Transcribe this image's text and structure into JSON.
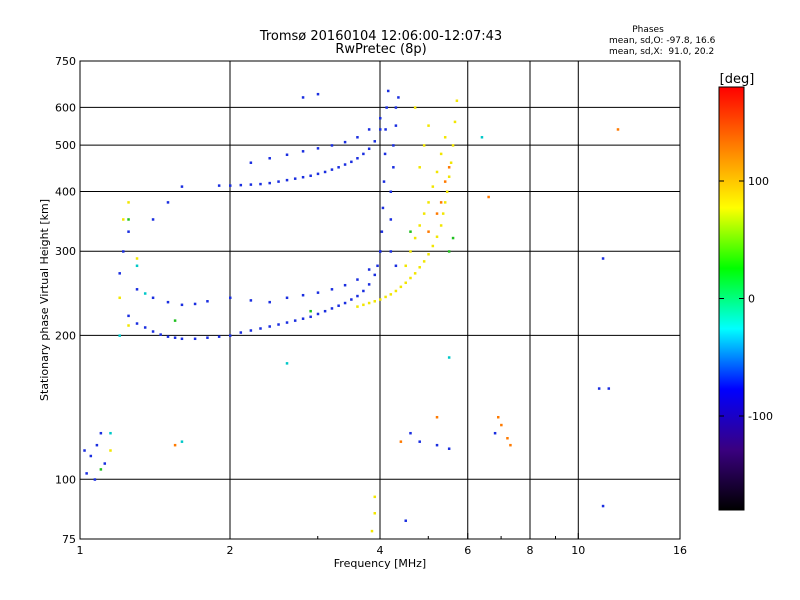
{
  "chart_data": {
    "type": "scatter",
    "title": "Tromsø 20160104 12:06:00-12:07:43",
    "subtitle": "RwPretec (8p)",
    "xlabel": "Frequency [MHz]",
    "ylabel": "Stationary phase Virtual Height [km]",
    "x_scale": "log",
    "y_scale": "log",
    "xlim": [
      1,
      16
    ],
    "ylim": [
      75,
      750
    ],
    "x_ticks": [
      1,
      2,
      4,
      6,
      8,
      10,
      16
    ],
    "x_tick_labels": [
      "1",
      "2",
      "4",
      "6",
      "8",
      "10",
      "16"
    ],
    "x_minor_ticks": [
      3,
      5,
      7,
      9
    ],
    "y_ticks": [
      75,
      100,
      200,
      300,
      400,
      500,
      600,
      750
    ],
    "y_tick_labels": [
      "75",
      "100",
      "200",
      "300",
      "400",
      "500",
      "600",
      "750"
    ],
    "grid": true,
    "stats": {
      "heading": "Phases",
      "line_o": "mean, sd,O: -97.8, 16.6",
      "line_x": "mean, sd,X:  91.0, 20.2"
    },
    "colorbar": {
      "label": "[deg]",
      "range": [
        -180,
        180
      ],
      "ticks": [
        100,
        0,
        -100
      ],
      "tick_labels": [
        "100",
        "0",
        "-100"
      ],
      "colors": [
        "#ff0000",
        "#ff8000",
        "#ffff00",
        "#00ff00",
        "#00ffff",
        "#0000ff",
        "#3a0080",
        "#000000"
      ]
    },
    "series": [
      {
        "name": "O",
        "color": "#1a2ee0",
        "phase": -97.8,
        "points": [
          [
            1.25,
            220
          ],
          [
            1.3,
            212
          ],
          [
            1.35,
            208
          ],
          [
            1.4,
            204
          ],
          [
            1.45,
            201
          ],
          [
            1.5,
            199
          ],
          [
            1.55,
            198
          ],
          [
            1.6,
            197
          ],
          [
            1.7,
            197
          ],
          [
            1.8,
            198
          ],
          [
            1.9,
            199
          ],
          [
            2.0,
            200
          ],
          [
            2.1,
            203
          ],
          [
            2.2,
            205
          ],
          [
            2.3,
            207
          ],
          [
            2.4,
            209
          ],
          [
            2.5,
            211
          ],
          [
            2.6,
            213
          ],
          [
            2.7,
            215
          ],
          [
            2.8,
            217
          ],
          [
            2.9,
            219
          ],
          [
            3.0,
            222
          ],
          [
            3.1,
            225
          ],
          [
            3.2,
            228
          ],
          [
            3.3,
            231
          ],
          [
            3.4,
            234
          ],
          [
            3.5,
            238
          ],
          [
            3.6,
            242
          ],
          [
            3.7,
            248
          ],
          [
            3.8,
            256
          ],
          [
            3.9,
            268
          ],
          [
            3.95,
            280
          ],
          [
            4.0,
            300
          ],
          [
            4.03,
            330
          ],
          [
            4.05,
            370
          ],
          [
            4.07,
            420
          ],
          [
            4.09,
            480
          ],
          [
            4.1,
            540
          ],
          [
            4.12,
            600
          ],
          [
            4.15,
            650
          ],
          [
            1.3,
            250
          ],
          [
            1.4,
            240
          ],
          [
            1.5,
            235
          ],
          [
            1.6,
            232
          ],
          [
            1.7,
            233
          ],
          [
            1.8,
            236
          ],
          [
            2.0,
            240
          ],
          [
            2.2,
            237
          ],
          [
            2.4,
            235
          ],
          [
            2.6,
            240
          ],
          [
            2.8,
            243
          ],
          [
            3.0,
            246
          ],
          [
            3.2,
            250
          ],
          [
            3.4,
            255
          ],
          [
            3.6,
            262
          ],
          [
            3.8,
            275
          ],
          [
            4.0,
            300
          ],
          [
            1.9,
            412
          ],
          [
            2.0,
            412
          ],
          [
            2.1,
            413
          ],
          [
            2.2,
            414
          ],
          [
            2.3,
            415
          ],
          [
            2.4,
            417
          ],
          [
            2.5,
            420
          ],
          [
            2.6,
            423
          ],
          [
            2.7,
            426
          ],
          [
            2.8,
            429
          ],
          [
            2.9,
            432
          ],
          [
            3.0,
            436
          ],
          [
            3.1,
            440
          ],
          [
            3.2,
            445
          ],
          [
            3.3,
            450
          ],
          [
            3.4,
            456
          ],
          [
            3.5,
            462
          ],
          [
            3.6,
            470
          ],
          [
            3.7,
            480
          ],
          [
            3.8,
            492
          ],
          [
            3.9,
            510
          ],
          [
            4.0,
            540
          ],
          [
            2.2,
            460
          ],
          [
            2.4,
            470
          ],
          [
            2.6,
            478
          ],
          [
            2.8,
            486
          ],
          [
            3.0,
            493
          ],
          [
            3.2,
            500
          ],
          [
            3.4,
            508
          ],
          [
            3.6,
            520
          ],
          [
            3.8,
            540
          ],
          [
            4.0,
            570
          ],
          [
            4.2,
            350
          ],
          [
            4.2,
            400
          ],
          [
            4.25,
            450
          ],
          [
            4.25,
            500
          ],
          [
            4.3,
            550
          ],
          [
            4.3,
            600
          ],
          [
            4.35,
            630
          ],
          [
            4.2,
            300
          ],
          [
            4.3,
            280
          ],
          [
            1.02,
            115
          ],
          [
            1.05,
            112
          ],
          [
            1.08,
            118
          ],
          [
            1.1,
            125
          ],
          [
            1.03,
            103
          ],
          [
            1.07,
            100
          ],
          [
            1.12,
            108
          ],
          [
            1.2,
            270
          ],
          [
            1.22,
            300
          ],
          [
            1.25,
            330
          ],
          [
            1.4,
            350
          ],
          [
            1.5,
            380
          ],
          [
            1.6,
            410
          ],
          [
            3.0,
            640
          ],
          [
            2.8,
            630
          ],
          [
            4.6,
            125
          ],
          [
            4.8,
            120
          ],
          [
            5.2,
            118
          ],
          [
            5.5,
            116
          ],
          [
            6.8,
            125
          ],
          [
            4.5,
            82
          ],
          [
            11.2,
            88
          ],
          [
            11.0,
            155
          ],
          [
            11.5,
            155
          ],
          [
            11.2,
            290
          ]
        ]
      },
      {
        "name": "X",
        "color": "#f2e600",
        "phase": 91.0,
        "points": [
          [
            3.6,
            230
          ],
          [
            3.7,
            232
          ],
          [
            3.8,
            234
          ],
          [
            3.9,
            236
          ],
          [
            4.0,
            238
          ],
          [
            4.1,
            241
          ],
          [
            4.2,
            244
          ],
          [
            4.3,
            248
          ],
          [
            4.4,
            253
          ],
          [
            4.5,
            258
          ],
          [
            4.6,
            264
          ],
          [
            4.7,
            270
          ],
          [
            4.8,
            278
          ],
          [
            4.9,
            286
          ],
          [
            5.0,
            296
          ],
          [
            5.1,
            308
          ],
          [
            5.2,
            322
          ],
          [
            5.3,
            340
          ],
          [
            5.35,
            360
          ],
          [
            5.4,
            380
          ],
          [
            5.45,
            400
          ],
          [
            5.5,
            430
          ],
          [
            5.55,
            460
          ],
          [
            5.6,
            500
          ],
          [
            5.65,
            560
          ],
          [
            5.7,
            620
          ],
          [
            4.5,
            280
          ],
          [
            4.6,
            300
          ],
          [
            4.7,
            320
          ],
          [
            4.8,
            340
          ],
          [
            4.9,
            360
          ],
          [
            5.0,
            380
          ],
          [
            5.1,
            410
          ],
          [
            5.2,
            440
          ],
          [
            5.3,
            480
          ],
          [
            5.4,
            520
          ],
          [
            4.8,
            450
          ],
          [
            4.9,
            500
          ],
          [
            5.0,
            550
          ],
          [
            4.7,
            600
          ],
          [
            1.25,
            380
          ],
          [
            1.22,
            350
          ],
          [
            1.3,
            290
          ],
          [
            1.2,
            240
          ],
          [
            1.25,
            210
          ],
          [
            3.9,
            85
          ],
          [
            3.9,
            92
          ],
          [
            3.85,
            78
          ],
          [
            1.15,
            115
          ]
        ]
      },
      {
        "name": "",
        "color": "#ff7a00",
        "phase": 160,
        "points": [
          [
            5.3,
            380
          ],
          [
            5.4,
            420
          ],
          [
            5.2,
            360
          ],
          [
            5.5,
            450
          ],
          [
            5.0,
            330
          ],
          [
            7.3,
            118
          ],
          [
            7.2,
            122
          ],
          [
            7.0,
            130
          ],
          [
            6.9,
            135
          ],
          [
            5.2,
            135
          ],
          [
            4.4,
            120
          ],
          [
            6.6,
            390
          ],
          [
            12.0,
            540
          ],
          [
            1.55,
            118
          ]
        ]
      },
      {
        "name": "",
        "color": "#00c8c8",
        "phase": -10,
        "points": [
          [
            1.3,
            280
          ],
          [
            1.15,
            125
          ],
          [
            1.2,
            200
          ],
          [
            1.35,
            245
          ],
          [
            6.4,
            520
          ],
          [
            5.5,
            180
          ],
          [
            1.6,
            120
          ],
          [
            2.6,
            175
          ]
        ]
      },
      {
        "name": "",
        "color": "#20c020",
        "phase": 20,
        "points": [
          [
            1.25,
            350
          ],
          [
            5.6,
            320
          ],
          [
            5.5,
            300
          ],
          [
            1.1,
            105
          ],
          [
            4.6,
            330
          ],
          [
            1.55,
            215
          ],
          [
            2.9,
            225
          ]
        ]
      }
    ]
  }
}
